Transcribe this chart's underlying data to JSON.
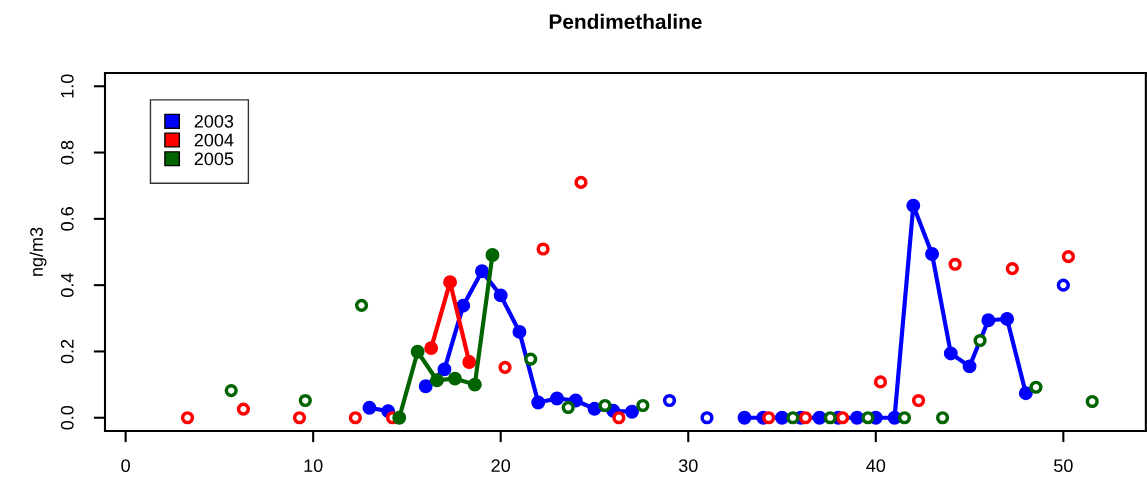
{
  "chart_data": {
    "type": "line",
    "title": "Pendimethaline",
    "ylabel": "ng/m3",
    "xlim": [
      -1.1,
      54.4
    ],
    "xticks": [
      0,
      10,
      20,
      30,
      40,
      50
    ],
    "ylim": [
      -0.04,
      1.04
    ],
    "yticks": [
      {
        "value": 0,
        "label": "0.0"
      },
      {
        "value": 0.2,
        "label": "0.2"
      },
      {
        "value": 0.4,
        "label": "0.4"
      },
      {
        "value": 0.6,
        "label": "0.6"
      },
      {
        "value": 0.8,
        "label": "0.8"
      },
      {
        "value": 1,
        "label": "1.0"
      }
    ],
    "grid": false,
    "legend": "top left",
    "marker": "circle",
    "line_style": "solid",
    "series": [
      {
        "name": "2003",
        "color": "#0000ff",
        "x": [
          13,
          14,
          15,
          16,
          17,
          18,
          19,
          20,
          21,
          22,
          23,
          24,
          25,
          26,
          27,
          28,
          29,
          30,
          31,
          32,
          33,
          34,
          35,
          36,
          37,
          38,
          39,
          40,
          41,
          42,
          43,
          44,
          45,
          46,
          47,
          48,
          49,
          50
        ],
        "values": [
          0.03,
          0.02,
          null,
          0.095,
          0.146,
          0.338,
          0.442,
          0.369,
          0.259,
          0.046,
          0.058,
          0.052,
          0.027,
          0.021,
          0.018,
          null,
          0.052,
          null,
          0,
          null,
          0,
          0,
          0,
          0,
          0,
          0,
          0,
          0,
          0,
          0.64,
          0.494,
          0.194,
          0.155,
          0.294,
          0.298,
          0.074,
          null,
          0.4
        ]
      },
      {
        "name": "2004",
        "color": "#ff0000",
        "x": [
          3.3,
          4.8,
          6.28,
          7.8,
          9.27,
          10.8,
          12.25,
          13.2,
          14.23,
          15.3,
          16.29,
          17.3,
          18.32,
          19.3,
          20.23,
          21.2,
          22.26,
          23.3,
          24.28,
          25.3,
          26.3,
          30.3,
          34.29,
          35.3,
          36.25,
          37.2,
          38.23,
          39.2,
          40.25,
          41.3,
          42.28,
          43.3,
          44.23,
          45.8,
          47.28,
          48.8,
          50.27
        ],
        "values": [
          0,
          null,
          0.026,
          null,
          0,
          null,
          0,
          null,
          0,
          null,
          0.21,
          0.409,
          0.168,
          null,
          0.152,
          null,
          0.509,
          null,
          0.71,
          null,
          0,
          null,
          0,
          null,
          0,
          null,
          0,
          null,
          0.108,
          null,
          0.052,
          null,
          0.463,
          null,
          0.45,
          null,
          0.486
        ]
      },
      {
        "name": "2005",
        "color": "#006400",
        "x": [
          5.63,
          7.6,
          9.58,
          11.1,
          12.58,
          13.6,
          14.59,
          15.57,
          16.6,
          17.56,
          18.62,
          19.56,
          20.6,
          21.6,
          22.6,
          23.6,
          24.6,
          25.56,
          26.6,
          27.58,
          31.6,
          35.58,
          36.6,
          37.57,
          38.6,
          39.58,
          40.6,
          41.53,
          42.6,
          43.56,
          44.6,
          45.56,
          47.1,
          48.54,
          50.1,
          51.54
        ],
        "values": [
          0.082,
          null,
          0.052,
          null,
          0.339,
          null,
          0,
          0.199,
          0.113,
          0.118,
          0.1,
          0.491,
          null,
          0.177,
          null,
          0.031,
          null,
          0.037,
          null,
          0.037,
          null,
          0,
          null,
          0,
          null,
          0,
          null,
          0,
          null,
          0,
          null,
          0.233,
          null,
          0.092,
          null,
          0.049
        ]
      }
    ]
  }
}
